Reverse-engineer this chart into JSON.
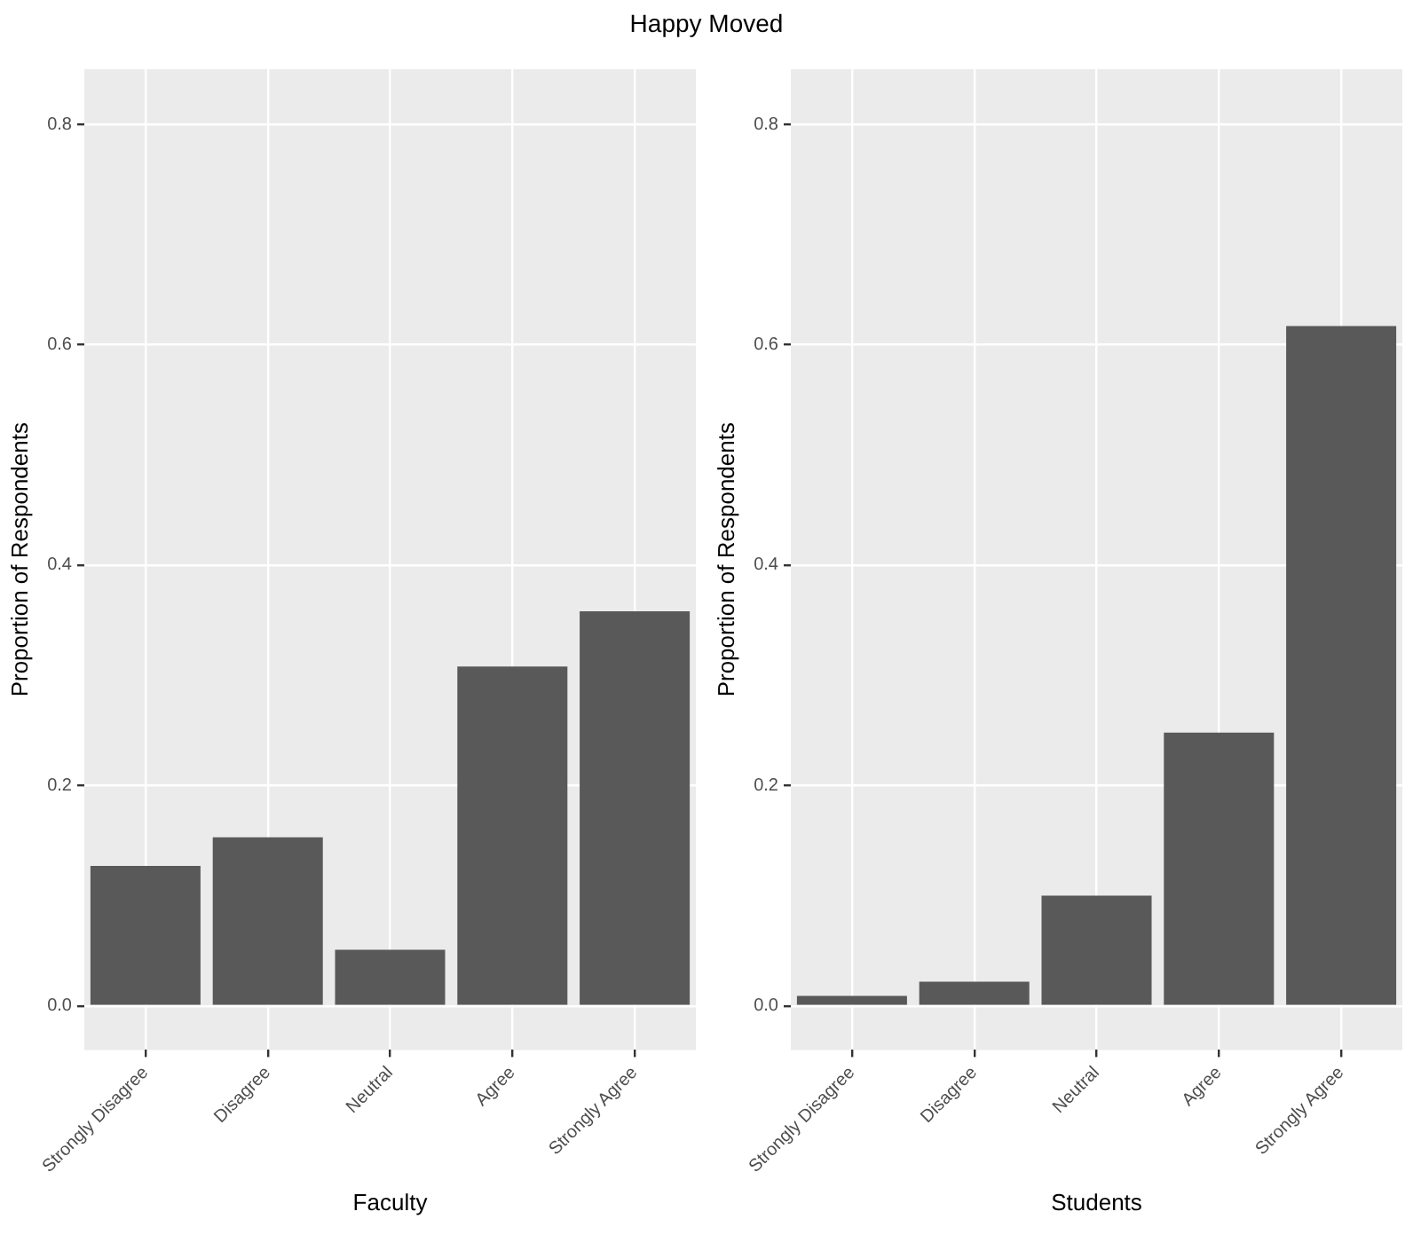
{
  "chart_data": [
    {
      "type": "bar",
      "title": "Happy Moved",
      "xlabel": "Faculty",
      "ylabel": "Proportion of Respondents",
      "categories": [
        "Strongly Disagree",
        "Disagree",
        "Neutral",
        "Agree",
        "Strongly Agree"
      ],
      "values": [
        0.127,
        0.153,
        0.051,
        0.308,
        0.358
      ],
      "color": "#595959",
      "ylim": [
        -0.04,
        0.85
      ],
      "yticks": [
        {
          "value": 0,
          "label": "0.0"
        },
        0.2,
        0.4,
        0.6,
        0.8
      ],
      "grid": true,
      "legend": false
    },
    {
      "type": "bar",
      "xlabel": "Students",
      "ylabel": "Proportion of Respondents",
      "categories": [
        "Strongly Disagree",
        "Disagree",
        "Neutral",
        "Agree",
        "Strongly Agree"
      ],
      "values": [
        0.009,
        0.022,
        0.1,
        0.248,
        0.617
      ],
      "color": "#595959",
      "ylim": [
        -0.04,
        0.85
      ],
      "yticks": [
        {
          "value": 0,
          "label": "0.0"
        },
        0.2,
        0.4,
        0.6,
        0.8
      ],
      "grid": true,
      "legend": false
    }
  ]
}
